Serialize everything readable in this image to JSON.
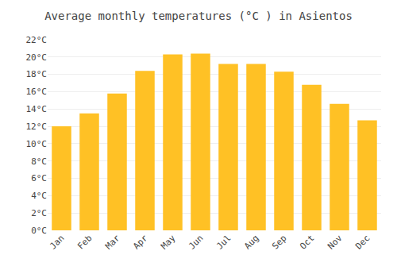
{
  "chart_data": {
    "type": "bar",
    "title": "Average monthly temperatures (°C ) in Asientos",
    "categories": [
      "Jan",
      "Feb",
      "Mar",
      "Apr",
      "May",
      "Jun",
      "Jul",
      "Aug",
      "Sep",
      "Oct",
      "Nov",
      "Dec"
    ],
    "values": [
      12.0,
      13.5,
      15.8,
      18.4,
      20.3,
      20.4,
      19.2,
      19.2,
      18.3,
      16.8,
      14.6,
      12.7
    ],
    "color": "#FFC125",
    "ylim": [
      0,
      22
    ],
    "yticks": [
      {
        "value": 0,
        "label": "0°C"
      },
      {
        "value": 2,
        "label": "2°C"
      },
      {
        "value": 4,
        "label": "4°C"
      },
      {
        "value": 6,
        "label": "6°C"
      },
      {
        "value": 8,
        "label": "8°C"
      },
      {
        "value": 10,
        "label": "10°C"
      },
      {
        "value": 12,
        "label": "12°C"
      },
      {
        "value": 14,
        "label": "14°C"
      },
      {
        "value": 16,
        "label": "16°C"
      },
      {
        "value": 18,
        "label": "18°C"
      },
      {
        "value": 20,
        "label": "20°C"
      },
      {
        "value": 22,
        "label": "22°C"
      }
    ],
    "grid": true
  }
}
